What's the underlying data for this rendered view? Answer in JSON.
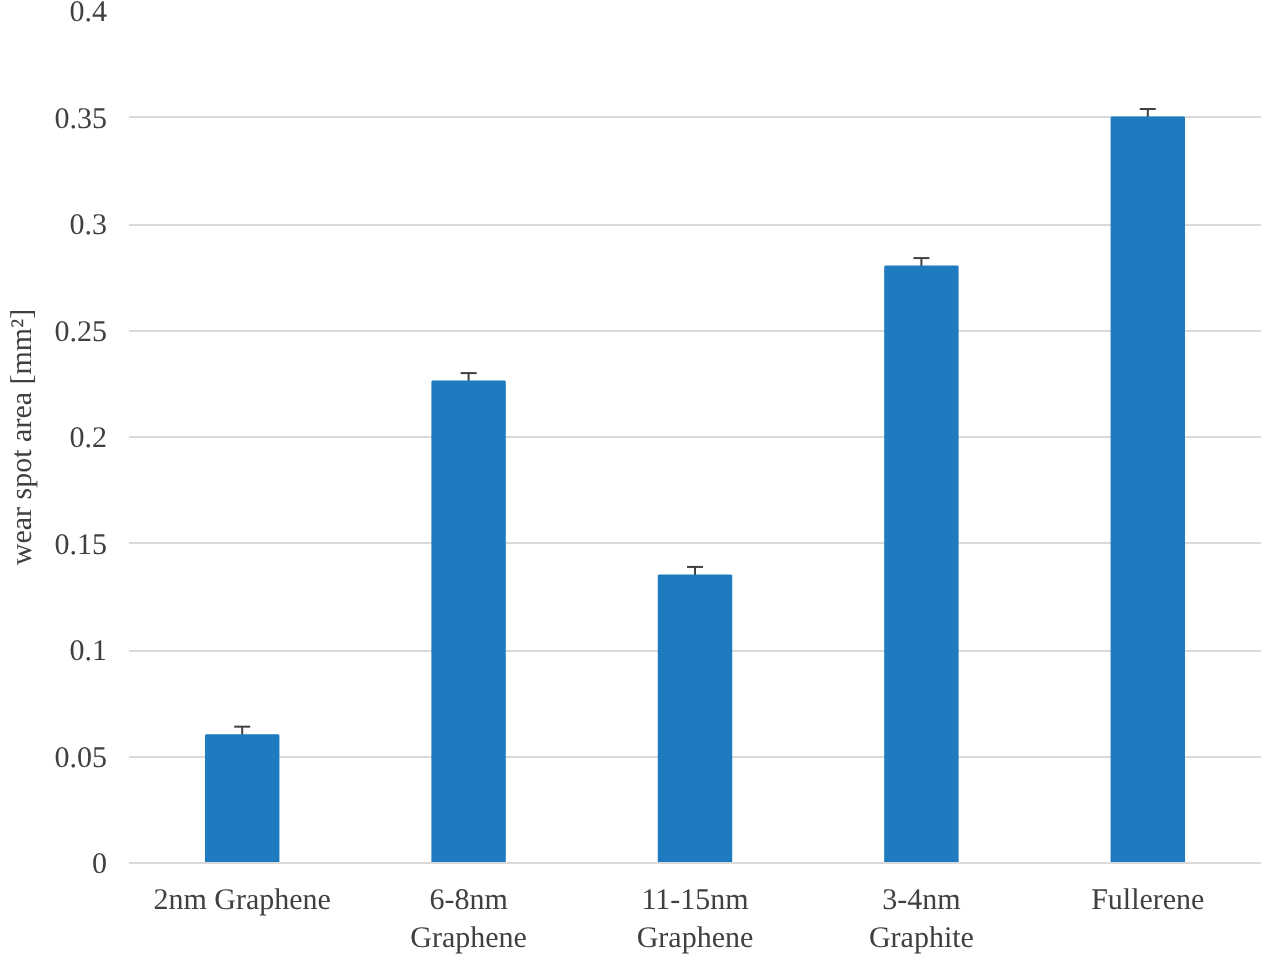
{
  "chart_data": {
    "type": "bar",
    "ylabel": "wear spot area [mm²]",
    "categories": [
      "2nm Graphene",
      "6-8nm\nGraphene",
      "11-15nm\nGraphene",
      "3-4nm\nGraphite",
      "Fullerene"
    ],
    "values": [
      0.06,
      0.226,
      0.135,
      0.28,
      0.35
    ],
    "errors": [
      0.004,
      0.004,
      0.004,
      0.004,
      0.004
    ],
    "color": "#1f7bbf",
    "ylim": [
      0,
      0.4
    ],
    "yticks": [
      {
        "value": 0,
        "label": "0"
      },
      {
        "value": 0.05,
        "label": "0.05"
      },
      {
        "value": 0.1,
        "label": "0.1"
      },
      {
        "value": 0.15,
        "label": "0.15"
      },
      {
        "value": 0.2,
        "label": "0.2"
      },
      {
        "value": 0.25,
        "label": "0.25"
      },
      {
        "value": 0.3,
        "label": "0.3"
      },
      {
        "value": 0.35,
        "label": "0.35"
      },
      {
        "value": 0.4,
        "label": "0.4"
      }
    ],
    "grid": "y"
  }
}
